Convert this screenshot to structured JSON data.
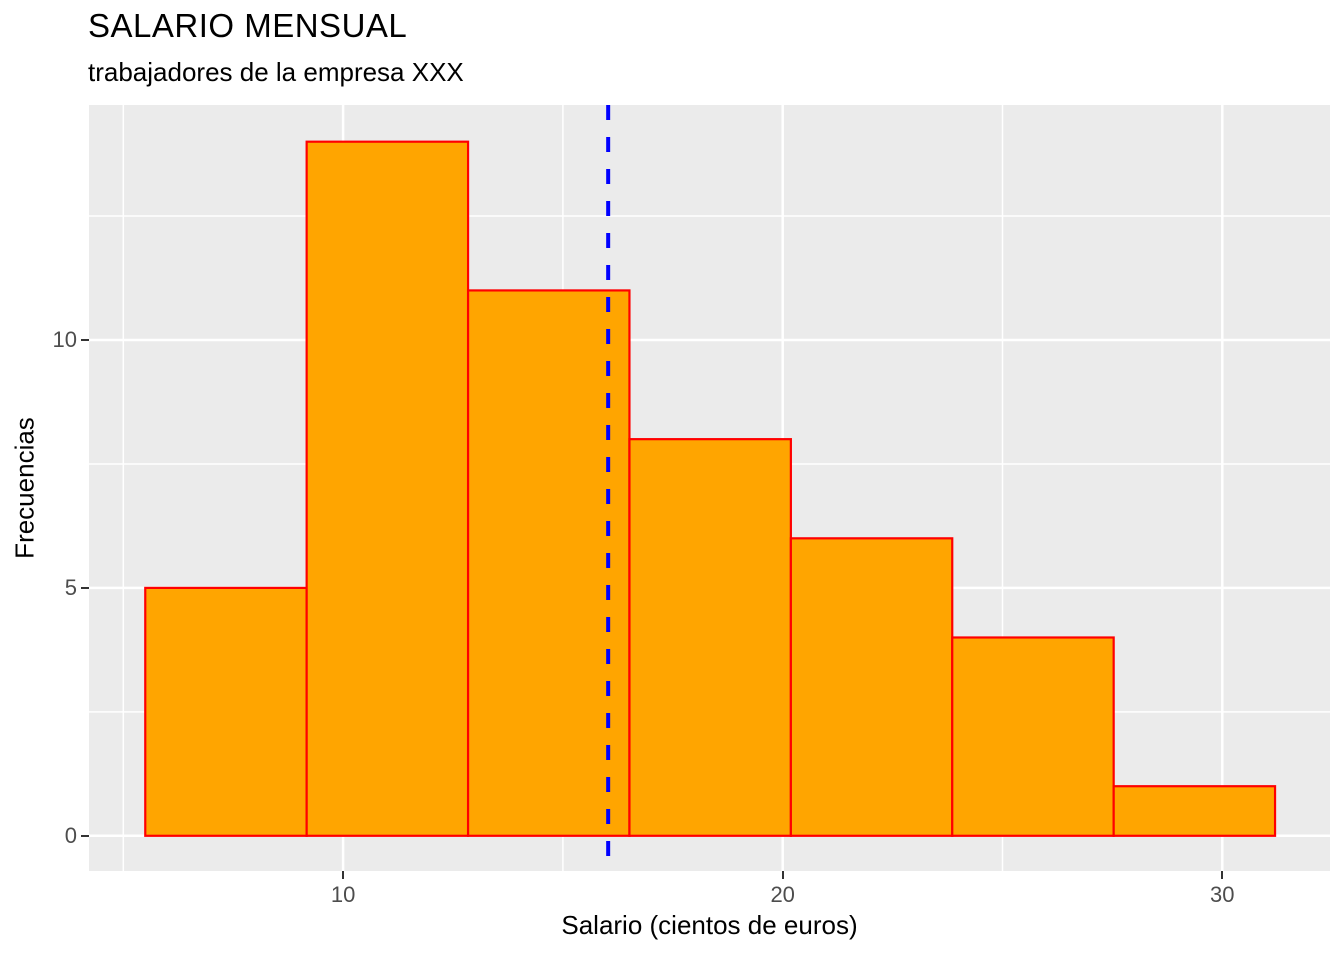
{
  "chart_data": {
    "type": "bar",
    "subtype": "histogram",
    "title": "SALARIO MENSUAL",
    "subtitle": "trabajadores de la empresa XXX",
    "xlabel": "Salario (cientos de euros)",
    "ylabel": "Frecuencias",
    "breaks": [
      5.5,
      9.171,
      12.843,
      16.514,
      20.186,
      23.857,
      27.529,
      31.2
    ],
    "counts": [
      5,
      14,
      11,
      8,
      6,
      4,
      1
    ],
    "vline": {
      "x": 16.03,
      "style": "dashed",
      "color": "#0000FF",
      "width": 4,
      "dash": 15,
      "gap": 17
    },
    "xlim": [
      4.22,
      32.45
    ],
    "ylim": [
      -0.71,
      14.74
    ],
    "x_ticks": [
      "10",
      "20",
      "30"
    ],
    "x_tick_values": [
      10,
      20,
      30
    ],
    "y_ticks": [
      "0",
      "5",
      "10"
    ],
    "y_tick_values": [
      0,
      5,
      10
    ],
    "x_minor_gridlines": [
      5,
      15,
      25
    ],
    "y_minor_gridlines": [
      2.5,
      7.5,
      12.5
    ],
    "x_major_gridlines": [
      10,
      20,
      30
    ],
    "y_major_gridlines": [
      0,
      5,
      10
    ],
    "grid": "on",
    "legend": "none",
    "colors": {
      "bar_fill": "#FFA500",
      "bar_border": "#FF0000",
      "panel_background": "#EBEBEB",
      "gridline": "#FFFFFF",
      "tick_label": "#4D4D4D",
      "tick_mark": "#333333",
      "vline": "#0000FF",
      "text": "#000000"
    }
  }
}
